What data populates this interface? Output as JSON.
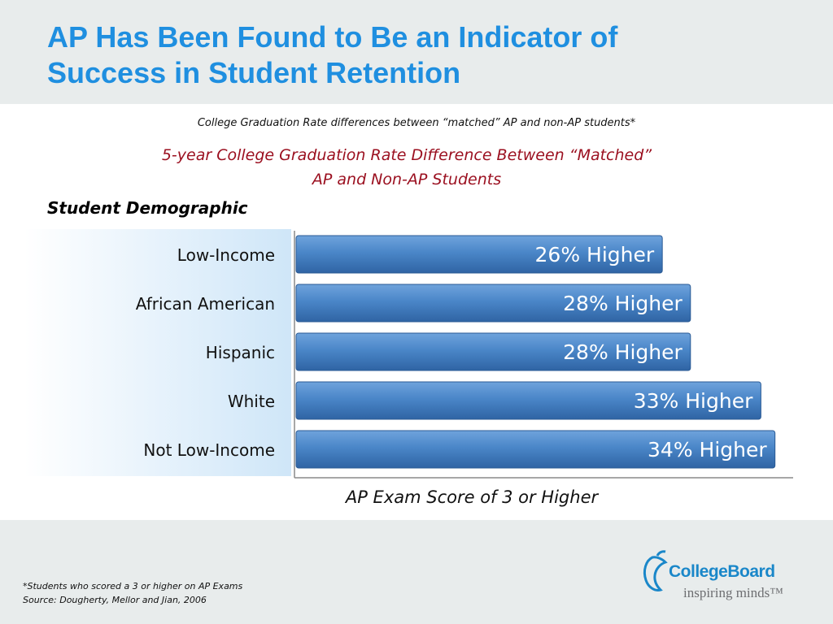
{
  "slide": {
    "title_line1": "AP Has Been Found to Be an Indicator of",
    "title_line2": "Success in Student Retention",
    "subtitle": "College Graduation Rate differences between “matched” AP and non-AP students*",
    "category_heading": "Student Demographic",
    "footnote_line1": "*Students who scored a 3 or higher on AP Exams",
    "footnote_line2": "Source: Dougherty, Mellor and Jian, 2006",
    "logo_text": "CollegeBoard",
    "logo_tagline": "inspiring minds™"
  },
  "chart_data": {
    "type": "bar",
    "orientation": "horizontal",
    "title_line1": "5-year College Graduation Rate Difference Between “Matched”",
    "title_line2": "AP and Non-AP Students",
    "xlabel": "AP Exam Score of 3 or Higher",
    "ylabel": "Student Demographic",
    "categories": [
      "Low-Income",
      "African American",
      "Hispanic",
      "White",
      "Not Low-Income"
    ],
    "values": [
      26,
      28,
      28,
      33,
      34
    ],
    "data_labels": [
      "26% Higher",
      "28% Higher",
      "28% Higher",
      "33% Higher",
      "34% Higher"
    ],
    "xlim": [
      0,
      35
    ],
    "grid": false,
    "legend": "none",
    "bar_color": "#3f7fc4"
  }
}
